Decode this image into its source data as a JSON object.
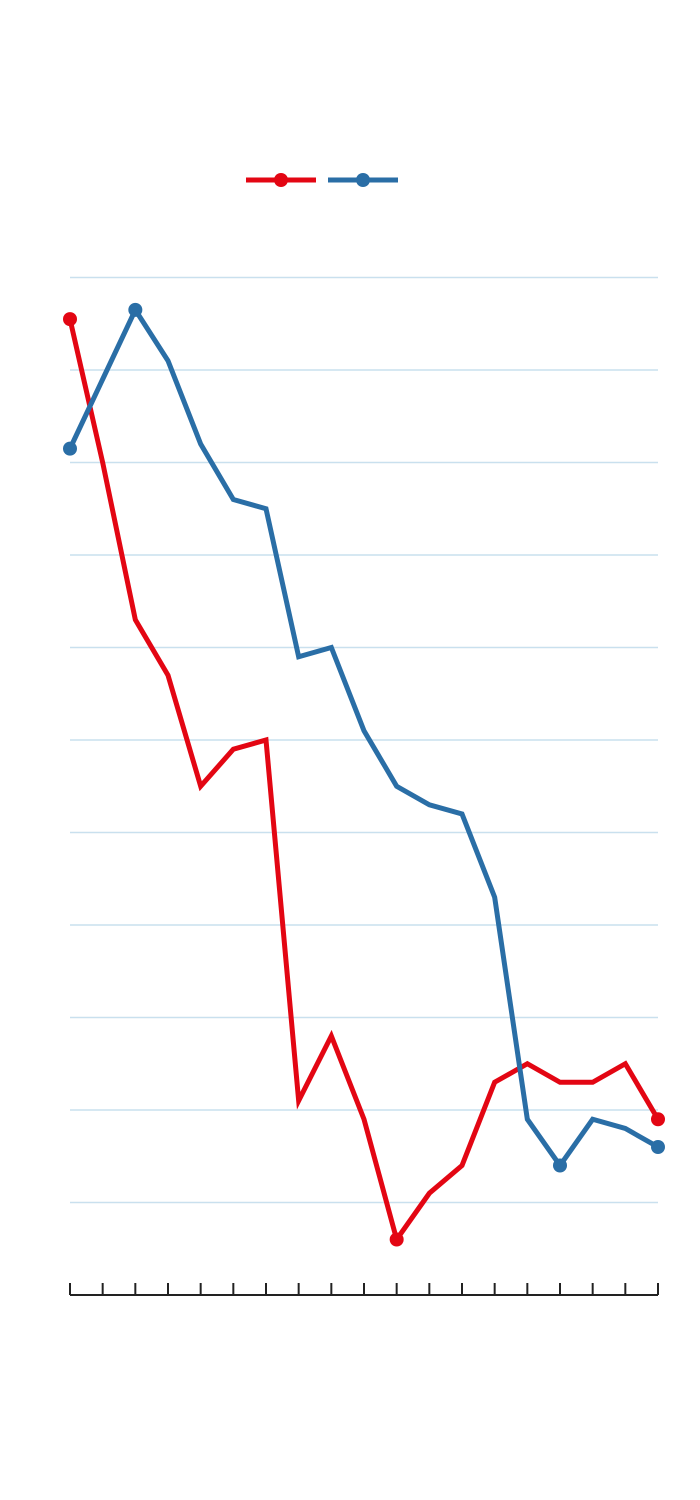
{
  "colors": {
    "series_a": "#e30613",
    "series_b": "#2a6ea6",
    "grid": "#c9e0ee",
    "axis": "#222222",
    "background": "#ffffff"
  },
  "chart_data": {
    "type": "line",
    "title": "",
    "xlabel": "",
    "ylabel": "",
    "grid": true,
    "legend": "top-center",
    "x": [
      1,
      2,
      3,
      4,
      5,
      6,
      7,
      8,
      9,
      10,
      11,
      12,
      13,
      14,
      15,
      16,
      17,
      18,
      19
    ],
    "ylim": [
      0,
      12
    ],
    "series": [
      {
        "name": "",
        "color": "#e30613",
        "values": [
          10.55,
          9.0,
          7.3,
          6.7,
          5.5,
          5.9,
          6.0,
          2.1,
          2.8,
          1.9,
          0.6,
          1.1,
          1.4,
          2.3,
          2.5,
          2.3,
          2.3,
          2.5,
          1.9
        ]
      },
      {
        "name": "",
        "color": "#2a6ea6",
        "values": [
          9.15,
          9.9,
          10.65,
          10.1,
          9.2,
          8.6,
          8.5,
          6.9,
          7.0,
          6.1,
          5.5,
          5.3,
          5.2,
          4.3,
          1.9,
          1.4,
          1.9,
          1.8,
          1.6
        ]
      }
    ]
  }
}
